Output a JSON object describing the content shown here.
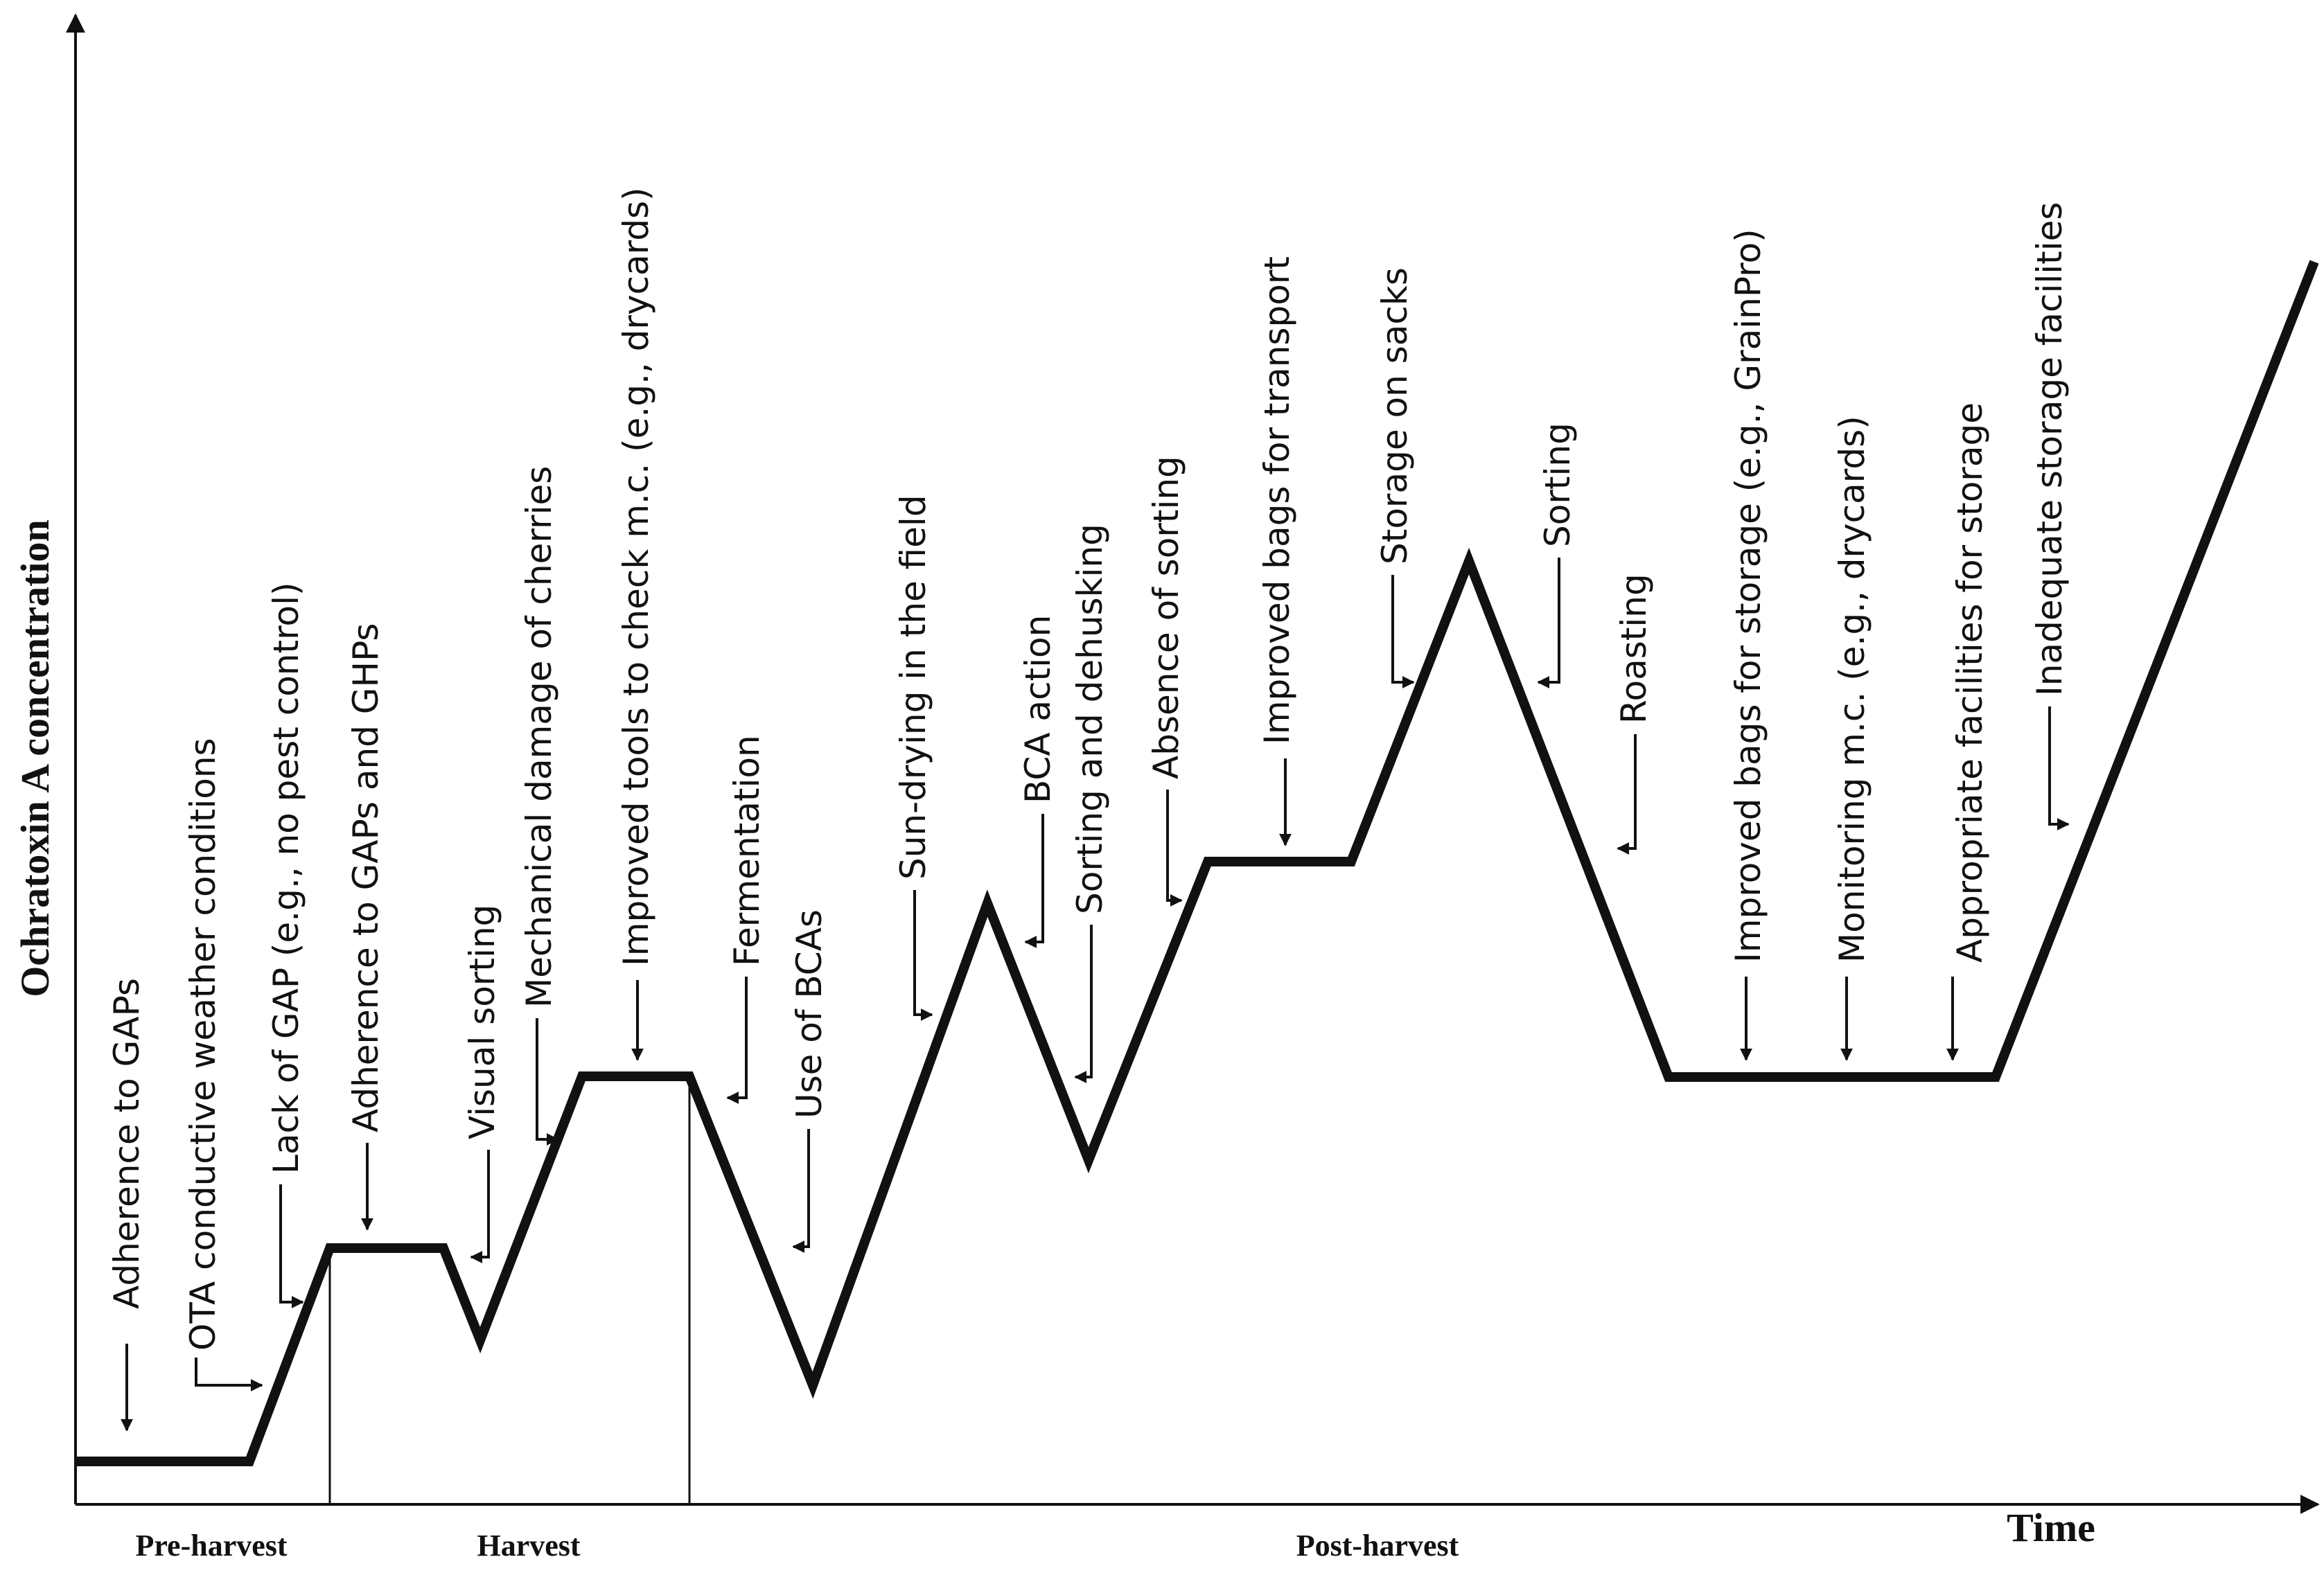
{
  "axes": {
    "y_title": "Ochratoxin A concentration",
    "x_title": "Time"
  },
  "stages": [
    "Pre-harvest",
    "Harvest",
    "Post-harvest"
  ],
  "factors": [
    "Adherence to GAPs",
    "OTA conductive weather conditions",
    "Lack of GAP (e.g., no pest control)",
    "Adherence to GAPs and GHPs",
    "Visual sorting",
    "Mechanical damage of cherries",
    "Improved tools to check m.c. (e.g., drycards)",
    "Fermentation",
    "Use of BCAs",
    "Sun-drying in the field",
    "BCA action",
    "Sorting and dehusking",
    "Absence of sorting",
    "Improved bags for transport",
    "Storage on sacks",
    "Sorting",
    "Roasting",
    "Improved bags for storage (e.g., GrainPro)",
    "Monitoring m.c. (e.g., drycards)",
    "Appropriate facilities for storage",
    "Inadequate storage facilities"
  ],
  "colors": {
    "line": "#111111",
    "background": "#ffffff"
  }
}
